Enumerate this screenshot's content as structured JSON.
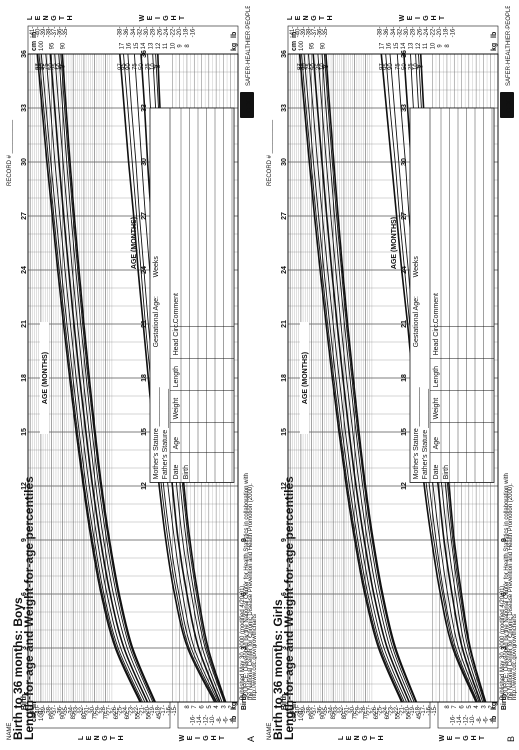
{
  "panels": [
    {
      "letter": "A",
      "name_label": "NAME",
      "record_label": "RECORD #",
      "title_line1": "Birth to 36 months: Boys",
      "title_line2": "Length-for-age and Weight-for-age percentiles",
      "axis_label_top": "AGE (MONTHS)",
      "axis_label_bottom": "AGE (MONTHS)",
      "length_word": "LENGTH",
      "weight_word": "WEIGHT",
      "table_headers": [
        "Mother's Stature",
        "Father's Stature",
        "Date",
        "Age",
        "Weight",
        "Length",
        "Head Circ.",
        "Comment"
      ],
      "table_row_birth": "Birth",
      "gestational_label": "Gestational Age:",
      "weeks_label": "Weeks",
      "footer_lines": [
        "Published May 30, 2000 (modified 4/20/01).",
        "SOURCE: Developed by the National Center for Health Statistics in collaboration with",
        "the National Center for Chronic Disease Prevention and Health Promotion (2000).",
        "http://www.cdc.gov/growthcharts"
      ],
      "logo_text": "CDC",
      "logo_tagline": "SAFER·HEALTHIER·PEOPLE™"
    },
    {
      "letter": "B",
      "name_label": "NAME",
      "record_label": "RECORD #",
      "title_line1": "Birth to 36 months: Girls",
      "title_line2": "Length-for-age and Weight-for-age percentiles",
      "axis_label_top": "AGE (MONTHS)",
      "axis_label_bottom": "AGE (MONTHS)",
      "length_word": "LENGTH",
      "weight_word": "WEIGHT",
      "table_headers": [
        "Mother's Stature",
        "Father's Stature",
        "Date",
        "Age",
        "Weight",
        "Length",
        "Head Circ.",
        "Comment"
      ],
      "table_row_birth": "Birth",
      "gestational_label": "Gestational Age:",
      "weeks_label": "Weeks",
      "footer_lines": [
        "Published May 30, 2000 (modified 4/20/01).",
        "SOURCE: Developed by the National Center for Health Statistics in collaboration with",
        "the National Center for Chronic Disease Prevention and Health Promotion (2000).",
        "http://www.cdc.gov/growthcharts"
      ],
      "logo_text": "CDC",
      "logo_tagline": "SAFER·HEALTHIER·PEOPLE™"
    }
  ],
  "chart_data": [
    {
      "type": "line",
      "title": "Birth to 36 months: Boys",
      "subtitle": "Length-for-age and Weight-for-age percentiles",
      "xlabel": "AGE (MONTHS)",
      "x_ticks_top": [
        "Birth",
        "3",
        "6",
        "9",
        "12",
        "15",
        "18",
        "21",
        "24",
        "27",
        "30",
        "33",
        "36"
      ],
      "x_ticks_bottom": [
        "Birth",
        "3",
        "6",
        "9",
        "12",
        "15",
        "18",
        "21",
        "24",
        "27",
        "30",
        "33",
        "36"
      ],
      "x": [
        0,
        3,
        6,
        9,
        12,
        15,
        18,
        21,
        24,
        27,
        30,
        33,
        36
      ],
      "length_units": [
        "cm",
        "in"
      ],
      "length_cm_ticks_left": [
        "100",
        "95",
        "90",
        "85",
        "80",
        "75",
        "70",
        "65",
        "60",
        "55",
        "50",
        "45"
      ],
      "length_in_ticks_left": [
        "41",
        "40",
        "39",
        "38",
        "37",
        "36",
        "35",
        "34",
        "33",
        "32",
        "31",
        "30",
        "29",
        "28",
        "27",
        "26",
        "25",
        "24",
        "23",
        "22",
        "21",
        "20",
        "19",
        "18",
        "17",
        "16",
        "15"
      ],
      "length_cm_ticks_right": [
        "100",
        "95",
        "90"
      ],
      "length_in_ticks_right": [
        "41",
        "40",
        "39",
        "38",
        "37",
        "36",
        "35"
      ],
      "weight_units": [
        "kg",
        "lb"
      ],
      "weight_kg_ticks_left": [
        "8",
        "7",
        "6",
        "5",
        "4",
        "3",
        "2"
      ],
      "weight_lb_ticks_left": [
        "16",
        "14",
        "12",
        "10",
        "8",
        "6",
        "4"
      ],
      "weight_kg_ticks_right": [
        "17",
        "16",
        "15",
        "14",
        "13",
        "12",
        "11",
        "10",
        "9",
        "8"
      ],
      "weight_lb_ticks_right": [
        "38",
        "36",
        "34",
        "32",
        "30",
        "28",
        "26",
        "24",
        "22",
        "20",
        "18",
        "16"
      ],
      "percentiles": [
        "97",
        "95",
        "90",
        "75",
        "50",
        "25",
        "10",
        "5",
        "3"
      ],
      "length_series": [
        {
          "name": "97",
          "values": [
            53.9,
            65.4,
            72.0,
            76.6,
            80.3,
            83.6,
            86.6,
            89.5,
            92.2,
            94.7,
            97.2,
            99.5,
            101.7
          ]
        },
        {
          "name": "95",
          "values": [
            53.4,
            64.8,
            71.4,
            76.0,
            79.8,
            83.0,
            86.0,
            88.8,
            91.5,
            94.0,
            96.4,
            98.7,
            100.9
          ]
        },
        {
          "name": "90",
          "values": [
            52.8,
            64.1,
            70.7,
            75.2,
            79.0,
            82.2,
            85.1,
            87.9,
            90.5,
            93.0,
            95.4,
            97.6,
            99.8
          ]
        },
        {
          "name": "75",
          "values": [
            51.7,
            62.9,
            69.3,
            73.8,
            77.5,
            80.7,
            83.6,
            86.3,
            88.8,
            91.2,
            93.5,
            95.6,
            97.7
          ]
        },
        {
          "name": "50",
          "values": [
            50.5,
            61.4,
            67.8,
            72.3,
            76.0,
            79.1,
            82.0,
            84.6,
            87.1,
            89.4,
            91.6,
            93.6,
            95.6
          ]
        },
        {
          "name": "25",
          "values": [
            49.2,
            59.9,
            66.3,
            70.8,
            74.5,
            77.6,
            80.4,
            83.0,
            85.4,
            87.6,
            89.7,
            91.7,
            93.6
          ]
        },
        {
          "name": "10",
          "values": [
            48.0,
            58.6,
            64.9,
            69.4,
            73.1,
            76.2,
            78.9,
            81.5,
            83.8,
            86.0,
            88.0,
            89.9,
            91.7
          ]
        },
        {
          "name": "5",
          "values": [
            47.4,
            57.9,
            64.1,
            68.6,
            72.3,
            75.3,
            78.1,
            80.6,
            82.9,
            85.1,
            87.1,
            89.0,
            90.7
          ]
        },
        {
          "name": "3",
          "values": [
            46.9,
            57.4,
            63.6,
            68.1,
            71.8,
            74.8,
            77.5,
            80.0,
            82.3,
            84.5,
            86.5,
            88.3,
            90.0
          ]
        }
      ],
      "weight_series": [
        {
          "name": "97",
          "values": [
            4.2,
            7.9,
            9.7,
            10.9,
            11.8,
            12.6,
            13.3,
            14.0,
            14.7,
            15.3,
            16.0,
            16.6,
            17.2
          ]
        },
        {
          "name": "95",
          "values": [
            4.0,
            7.7,
            9.4,
            10.6,
            11.5,
            12.3,
            13.0,
            13.7,
            14.3,
            14.9,
            15.5,
            16.1,
            16.7
          ]
        },
        {
          "name": "90",
          "values": [
            3.9,
            7.4,
            9.1,
            10.3,
            11.2,
            11.9,
            12.6,
            13.3,
            13.9,
            14.5,
            15.0,
            15.6,
            16.1
          ]
        },
        {
          "name": "75",
          "values": [
            3.7,
            7.0,
            8.6,
            9.7,
            10.6,
            11.3,
            12.0,
            12.6,
            13.1,
            13.7,
            14.2,
            14.7,
            15.2
          ]
        },
        {
          "name": "50",
          "values": [
            3.5,
            6.4,
            8.0,
            9.2,
            10.0,
            10.7,
            11.3,
            11.8,
            12.4,
            12.9,
            13.4,
            13.8,
            14.3
          ]
        },
        {
          "name": "25",
          "values": [
            3.2,
            5.9,
            7.4,
            8.6,
            9.4,
            10.0,
            10.6,
            11.1,
            11.6,
            12.1,
            12.6,
            13.0,
            13.4
          ]
        },
        {
          "name": "10",
          "values": [
            2.9,
            5.5,
            7.0,
            8.1,
            8.9,
            9.5,
            10.1,
            10.6,
            11.1,
            11.5,
            11.9,
            12.3,
            12.7
          ]
        },
        {
          "name": "5",
          "values": [
            2.8,
            5.3,
            6.7,
            7.8,
            8.6,
            9.2,
            9.8,
            10.3,
            10.7,
            11.1,
            11.5,
            11.9,
            12.3
          ]
        },
        {
          "name": "3",
          "values": [
            2.7,
            5.1,
            6.5,
            7.6,
            8.4,
            9.0,
            9.6,
            10.1,
            10.5,
            10.9,
            11.3,
            11.7,
            12.0
          ]
        }
      ]
    },
    {
      "type": "line",
      "title": "Birth to 36 months: Girls",
      "subtitle": "Length-for-age and Weight-for-age percentiles",
      "xlabel": "AGE (MONTHS)",
      "x_ticks_top": [
        "Birth",
        "3",
        "6",
        "9",
        "12",
        "15",
        "18",
        "21",
        "24",
        "27",
        "30",
        "33",
        "36"
      ],
      "x_ticks_bottom": [
        "Birth",
        "3",
        "6",
        "9",
        "12",
        "15",
        "18",
        "21",
        "24",
        "27",
        "30",
        "33",
        "36"
      ],
      "x": [
        0,
        3,
        6,
        9,
        12,
        15,
        18,
        21,
        24,
        27,
        30,
        33,
        36
      ],
      "length_units": [
        "cm",
        "in"
      ],
      "length_cm_ticks_left": [
        "100",
        "95",
        "90",
        "85",
        "80",
        "75",
        "70",
        "65",
        "60",
        "55",
        "50",
        "45"
      ],
      "length_in_ticks_left": [
        "41",
        "40",
        "39",
        "38",
        "37",
        "36",
        "35",
        "34",
        "33",
        "32",
        "31",
        "30",
        "29",
        "28",
        "27",
        "26",
        "25",
        "24",
        "23",
        "22",
        "21",
        "20",
        "19",
        "18",
        "17",
        "16",
        "15"
      ],
      "length_cm_ticks_right": [
        "100",
        "95",
        "90"
      ],
      "length_in_ticks_right": [
        "41",
        "40",
        "39",
        "38",
        "37",
        "36",
        "35"
      ],
      "weight_units": [
        "kg",
        "lb"
      ],
      "weight_kg_ticks_left": [
        "8",
        "7",
        "6",
        "5",
        "4",
        "3",
        "2"
      ],
      "weight_lb_ticks_left": [
        "16",
        "14",
        "12",
        "10",
        "8",
        "6",
        "4"
      ],
      "weight_kg_ticks_right": [
        "17",
        "16",
        "15",
        "14",
        "13",
        "12",
        "11",
        "10",
        "9",
        "8"
      ],
      "weight_lb_ticks_right": [
        "38",
        "36",
        "34",
        "32",
        "30",
        "28",
        "26",
        "24",
        "22",
        "20",
        "18",
        "16"
      ],
      "percentiles": [
        "97",
        "95",
        "90",
        "75",
        "50",
        "25",
        "10",
        "5",
        "3"
      ],
      "length_series": [
        {
          "name": "97",
          "values": [
            53.2,
            63.9,
            70.3,
            75.0,
            78.9,
            82.3,
            85.4,
            88.3,
            91.1,
            93.7,
            96.1,
            98.4,
            100.6
          ]
        },
        {
          "name": "95",
          "values": [
            52.7,
            63.3,
            69.7,
            74.4,
            78.3,
            81.7,
            84.7,
            87.6,
            90.3,
            92.9,
            95.3,
            97.6,
            99.7
          ]
        },
        {
          "name": "90",
          "values": [
            52.0,
            62.6,
            68.9,
            73.6,
            77.4,
            80.8,
            83.8,
            86.6,
            89.3,
            91.8,
            94.2,
            96.4,
            98.5
          ]
        },
        {
          "name": "75",
          "values": [
            50.9,
            61.4,
            67.6,
            72.2,
            76.0,
            79.3,
            82.2,
            85.0,
            87.6,
            90.0,
            92.3,
            94.4,
            96.5
          ]
        },
        {
          "name": "50",
          "values": [
            49.7,
            59.9,
            66.1,
            70.6,
            74.4,
            77.6,
            80.5,
            83.2,
            85.7,
            88.0,
            90.2,
            92.3,
            94.3
          ]
        },
        {
          "name": "25",
          "values": [
            48.5,
            58.5,
            64.6,
            69.1,
            72.8,
            75.9,
            78.8,
            81.4,
            83.8,
            86.1,
            88.2,
            90.2,
            92.1
          ]
        },
        {
          "name": "10",
          "values": [
            47.4,
            57.3,
            63.3,
            67.7,
            71.3,
            74.4,
            77.2,
            79.8,
            82.2,
            84.4,
            86.4,
            88.4,
            90.2
          ]
        },
        {
          "name": "5",
          "values": [
            46.7,
            56.5,
            62.5,
            66.9,
            70.5,
            73.6,
            76.3,
            78.9,
            81.2,
            83.4,
            85.4,
            87.3,
            89.1
          ]
        },
        {
          "name": "3",
          "values": [
            46.3,
            56.0,
            62.0,
            66.4,
            70.0,
            73.0,
            75.7,
            78.3,
            80.6,
            82.7,
            84.7,
            86.6,
            88.4
          ]
        }
      ],
      "weight_series": [
        {
          "name": "97",
          "values": [
            4.0,
            7.2,
            8.9,
            10.1,
            11.1,
            11.9,
            12.7,
            13.4,
            14.2,
            14.9,
            15.6,
            16.3,
            17.0
          ]
        },
        {
          "name": "95",
          "values": [
            3.9,
            7.0,
            8.6,
            9.8,
            10.8,
            11.6,
            12.4,
            13.1,
            13.8,
            14.5,
            15.1,
            15.8,
            16.4
          ]
        },
        {
          "name": "90",
          "values": [
            3.8,
            6.8,
            8.4,
            9.5,
            10.4,
            11.2,
            12.0,
            12.7,
            13.3,
            14.0,
            14.6,
            15.2,
            15.8
          ]
        },
        {
          "name": "75",
          "values": [
            3.6,
            6.4,
            7.9,
            9.0,
            9.9,
            10.7,
            11.4,
            12.0,
            12.6,
            13.2,
            13.7,
            14.3,
            14.8
          ]
        },
        {
          "name": "50",
          "values": [
            3.4,
            5.9,
            7.3,
            8.4,
            9.2,
            10.0,
            10.7,
            11.3,
            11.8,
            12.4,
            12.9,
            13.4,
            13.9
          ]
        },
        {
          "name": "25",
          "values": [
            3.1,
            5.5,
            6.8,
            7.9,
            8.7,
            9.4,
            10.0,
            10.6,
            11.1,
            11.6,
            12.1,
            12.6,
            13.0
          ]
        },
        {
          "name": "10",
          "values": [
            2.9,
            5.1,
            6.4,
            7.4,
            8.2,
            8.9,
            9.5,
            10.0,
            10.5,
            11.0,
            11.4,
            11.9,
            12.3
          ]
        },
        {
          "name": "5",
          "values": [
            2.8,
            4.9,
            6.2,
            7.2,
            7.9,
            8.6,
            9.2,
            9.7,
            10.2,
            10.6,
            11.1,
            11.5,
            11.9
          ]
        },
        {
          "name": "3",
          "values": [
            2.7,
            4.8,
            6.0,
            7.0,
            7.7,
            8.4,
            9.0,
            9.5,
            10.0,
            10.4,
            10.8,
            11.2,
            11.6
          ]
        }
      ]
    }
  ]
}
